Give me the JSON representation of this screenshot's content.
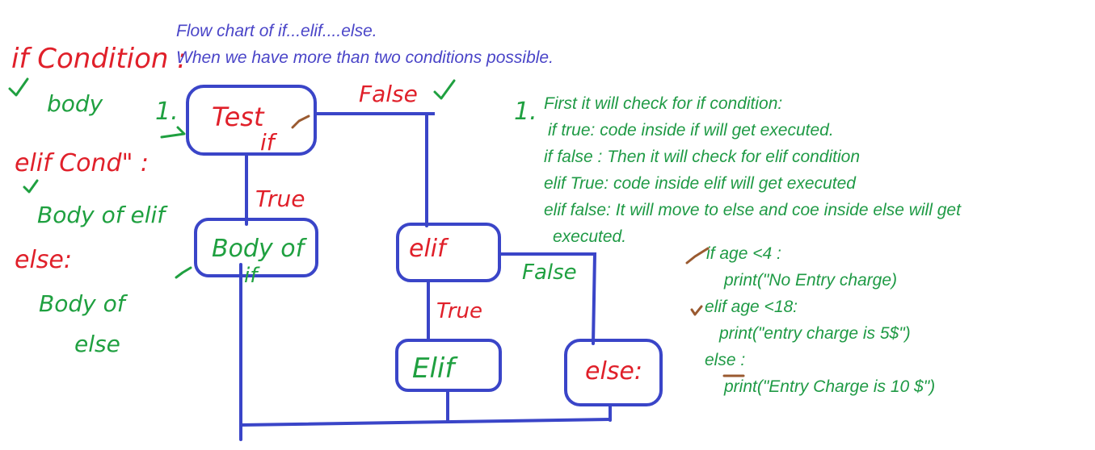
{
  "colors": {
    "blue": "#3a45c8",
    "red": "#e0202a",
    "green": "#1fa040",
    "title": "#4a45c8",
    "brown": "#9a5a30"
  },
  "title": {
    "line1": "Flow chart of if...elif....else.",
    "line2": "When we have more than two conditions possible."
  },
  "left_notes": {
    "if_condition": "if Condition :",
    "body": "body",
    "elif_cond": "elif Cond\" :",
    "body_of_elif": "Body of elif",
    "else": "else:",
    "body_of_else_1": "Body of",
    "body_of_else_2": "else"
  },
  "flowchart": {
    "step_marker": "1.",
    "test_box_line1": "Test",
    "test_box_line2": "if",
    "false_label_top": "False",
    "true_label_1": "True",
    "body_box_line1": "Body of",
    "body_box_line2": "if",
    "elif_box": "elif",
    "false_label_elif": "False",
    "true_label_2": "True",
    "elif_body_box": "Elif",
    "else_box": "else:"
  },
  "explanation": {
    "marker": "1.",
    "lines": [
      "First it will check for if condition:",
      "if true: code inside if will get executed.",
      "if false : Then it will check for elif condition",
      "elif True: code inside elif will get executed",
      "elif false: It will move to else and coe inside else will get",
      "executed."
    ]
  },
  "code": {
    "lines": [
      "if age <4 :",
      "print(\"No Entry charge)",
      "elif age <18:",
      "print(\"entry charge is 5$\")",
      "else :",
      "print(\"Entry Charge is 10 $\")"
    ]
  }
}
